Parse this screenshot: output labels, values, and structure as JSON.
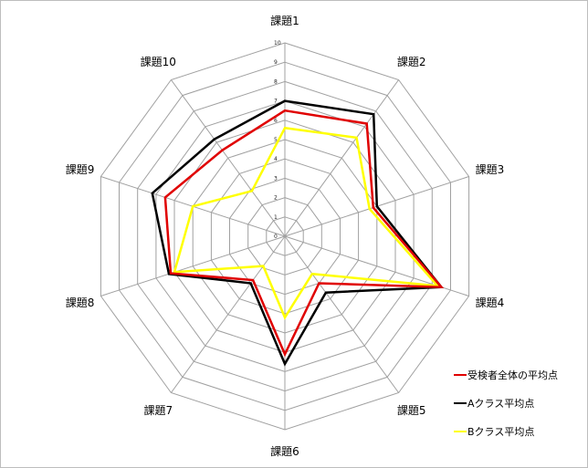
{
  "chart_data": {
    "type": "radar",
    "categories": [
      "課題1",
      "課題2",
      "課題3",
      "課題4",
      "課題5",
      "課題6",
      "課題7",
      "課題8",
      "課題9",
      "課題10"
    ],
    "rlim": [
      0,
      10
    ],
    "ticks": [
      "0",
      "1",
      "2",
      "3",
      "4",
      "5",
      "6",
      "7",
      "8",
      "9",
      "10"
    ],
    "grid": true,
    "legend_position": "bottom-right",
    "series": [
      {
        "name": "受検者全体の平均点",
        "color": "#e00000",
        "values": [
          6.5,
          7.2,
          4.8,
          8.5,
          3.0,
          6.1,
          2.8,
          6.2,
          6.5,
          5.5
        ]
      },
      {
        "name": "Aクラス平均点",
        "color": "#000000",
        "values": [
          7.0,
          7.8,
          5.0,
          8.5,
          3.6,
          6.6,
          3.0,
          6.3,
          7.2,
          6.2
        ]
      },
      {
        "name": "Bクラス平均点",
        "color": "#ffff00",
        "values": [
          5.6,
          6.3,
          4.6,
          8.3,
          2.4,
          4.2,
          1.9,
          6.0,
          5.0,
          2.9
        ]
      }
    ]
  }
}
